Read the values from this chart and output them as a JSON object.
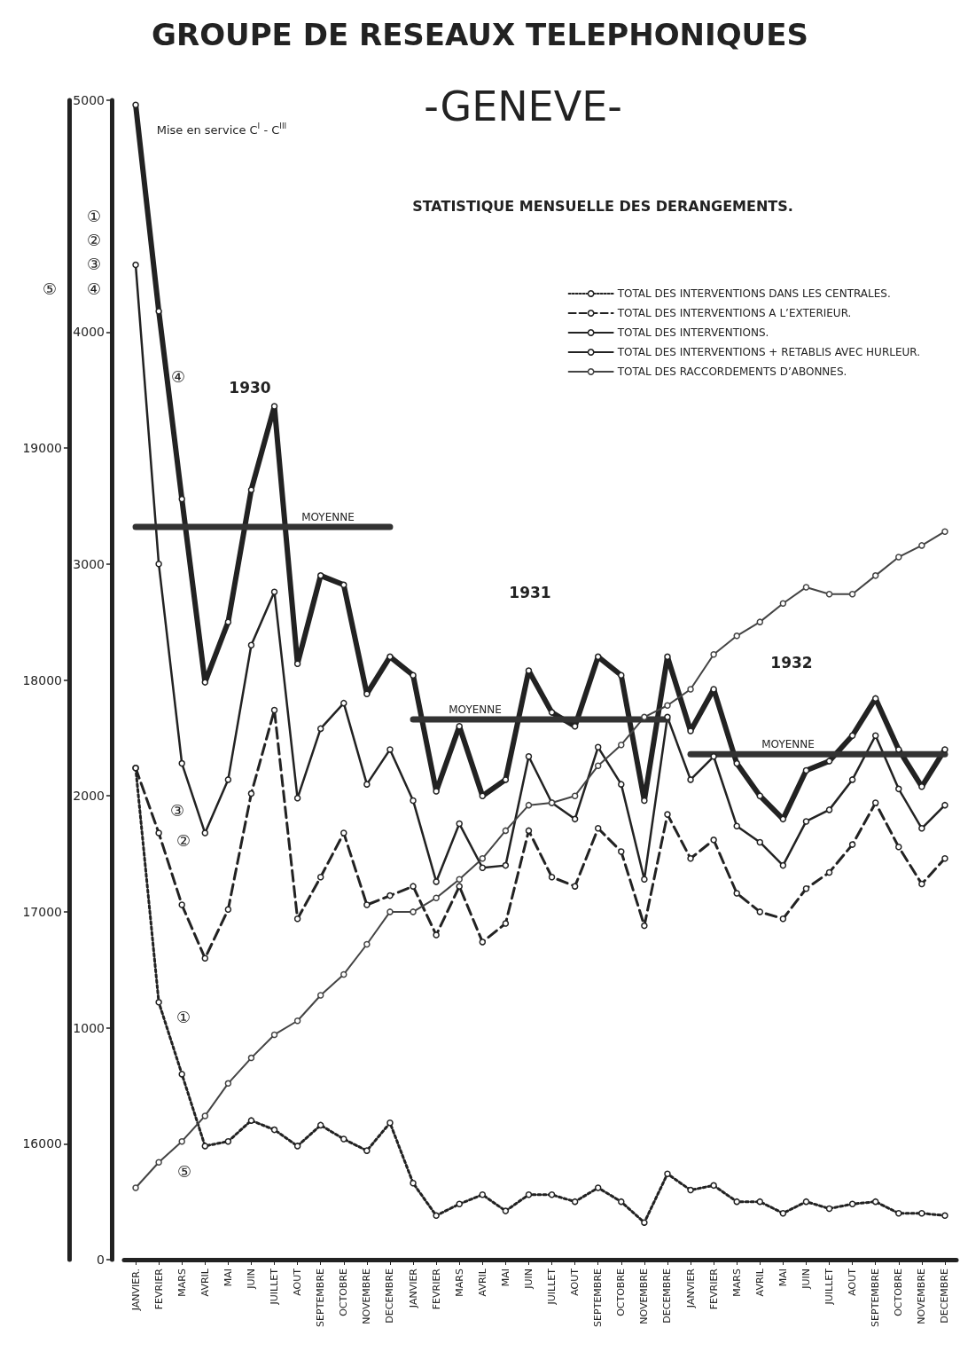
{
  "chart_data": {
    "type": "line",
    "title": "GROUPE DE RESEAUX TELEPHONIQUES",
    "subtitle": "-GENEVE-",
    "categories": [
      "JANVIER.",
      "FEVRIER",
      "MARS",
      "AVRIL",
      "MAI",
      "JUIN",
      "JUILLET",
      "AOUT",
      "SEPTEMBRE",
      "OCTOBRE",
      "NOVEMBRE",
      "DECEMBRE",
      "JANVIER",
      "FEVRIER",
      "MARS",
      "AVRIL",
      "MAI",
      "JUIN",
      "JUILLET",
      "AOUT",
      "SEPTEMBRE",
      "OCTOBRE",
      "NOVEMBRE",
      "DECEMBRE",
      "JANVIER",
      "FEVRIER",
      "MARS",
      "AVRIL",
      "MAI",
      "JUIN",
      "JUILLET",
      "AOUT",
      "SEPTEMBRE",
      "OCTOBRE",
      "NOVEMBRE",
      "DECEMBRE"
    ],
    "series": [
      {
        "name": "TOTAL DES INTERVENTIONS DANS LES CENTRALES.",
        "color": "#222222",
        "line_style": "dotted",
        "values": [
          2120,
          1110,
          800,
          490,
          510,
          600,
          560,
          490,
          580,
          520,
          470,
          590,
          330,
          190,
          240,
          280,
          210,
          280,
          280,
          250,
          310,
          250,
          160,
          370,
          300,
          320,
          250,
          250,
          200,
          250,
          220,
          240,
          250,
          200,
          200,
          190
        ]
      },
      {
        "name": "TOTAL DES INTERVENTIONS A L’EXTERIEUR.",
        "color": "#222222",
        "line_style": "dashed",
        "values": [
          2120,
          1840,
          1530,
          1300,
          1510,
          2010,
          2370,
          1470,
          1650,
          1840,
          1530,
          1570,
          1610,
          1400,
          1610,
          1370,
          1450,
          1850,
          1650,
          1610,
          1860,
          1760,
          1440,
          1920,
          1730,
          1810,
          1580,
          1500,
          1470,
          1600,
          1670,
          1790,
          1970,
          1780,
          1620,
          1730
        ]
      },
      {
        "name": "TOTAL DES INTERVENTIONS.",
        "color": "#222222",
        "line_style": "solid",
        "values": [
          4290,
          3000,
          2140,
          1840,
          2070,
          2650,
          2880,
          1990,
          2290,
          2400,
          2050,
          2200,
          1980,
          1630,
          1880,
          1690,
          1700,
          2170,
          1970,
          1900,
          2210,
          2050,
          1640,
          2340,
          2070,
          2170,
          1870,
          1800,
          1700,
          1890,
          1940,
          2070,
          2260,
          2030,
          1860,
          1960
        ]
      },
      {
        "name": "TOTAL DES INTERVENTIONS + RETABLIS AVEC HURLEUR.",
        "color": "#222222",
        "line_style": "solid",
        "values": [
          4980,
          4090,
          3280,
          2490,
          2750,
          3320,
          3680,
          2570,
          2950,
          2910,
          2440,
          2600,
          2520,
          2020,
          2300,
          2000,
          2070,
          2540,
          2360,
          2300,
          2600,
          2520,
          1980,
          2600,
          2280,
          2460,
          2140,
          2000,
          1900,
          2110,
          2150,
          2260,
          2420,
          2200,
          2040,
          2200
        ]
      },
      {
        "name": "TOTAL DES RACCORDEMENTS D’ABONNES.",
        "color": "#444444",
        "line_style": "solid",
        "axis": "y2",
        "values": [
          15810,
          15920,
          16010,
          16120,
          16260,
          16370,
          16470,
          16530,
          16640,
          16730,
          16860,
          17000,
          17000,
          17060,
          17140,
          17230,
          17350,
          17460,
          17470,
          17500,
          17630,
          17720,
          17840,
          17890,
          17960,
          18110,
          18190,
          18250,
          18330,
          18400,
          18370,
          18370,
          18450,
          18530,
          18580,
          18640
        ]
      },
      {
        "name": "MOYENNE",
        "color": "#333333",
        "line_style": "solid",
        "marker": "none",
        "values": [
          3160,
          3160,
          3160,
          3160,
          3160,
          3160,
          3160,
          3160,
          3160,
          3160,
          3160,
          3160,
          null,
          null,
          null,
          null,
          null,
          null,
          null,
          null,
          null,
          null,
          null,
          null,
          null,
          null,
          null,
          null,
          null,
          null,
          null,
          null,
          null,
          null,
          null,
          null
        ]
      },
      {
        "name": "MOYENNE",
        "color": "#333333",
        "line_style": "solid",
        "marker": "none",
        "values": [
          null,
          null,
          null,
          null,
          null,
          null,
          null,
          null,
          null,
          null,
          null,
          null,
          2330,
          2330,
          2330,
          2330,
          2330,
          2330,
          2330,
          2330,
          2330,
          2330,
          2330,
          2330,
          null,
          null,
          null,
          null,
          null,
          null,
          null,
          null,
          null,
          null,
          null,
          null
        ]
      },
      {
        "name": "MOYENNE",
        "color": "#333333",
        "line_style": "solid",
        "marker": "none",
        "values": [
          null,
          null,
          null,
          null,
          null,
          null,
          null,
          null,
          null,
          null,
          null,
          null,
          null,
          null,
          null,
          null,
          null,
          null,
          null,
          null,
          null,
          null,
          null,
          null,
          2180,
          2180,
          2180,
          2180,
          2180,
          2180,
          2180,
          2180,
          2180,
          2180,
          2180,
          2180
        ]
      }
    ],
    "ylim": [
      0,
      5000
    ],
    "yticks": [
      0,
      1000,
      2000,
      3000,
      4000,
      5000
    ],
    "y2lim": [
      15500,
      20500
    ],
    "y2ticks": [
      16000,
      17000,
      18000,
      19000
    ],
    "marker": "circle",
    "grid": false,
    "legend": "top right",
    "annotations": [
      "STATISTIQUE MENSUELLE DES DERANGEMENTS.",
      "Mise en service C$^{I}$ - C$^{III}$",
      "1930",
      "1931",
      "1932",
      "①",
      "②",
      "③",
      "④",
      "⑤",
      "④",
      "③",
      "②",
      "①",
      "⑤"
    ]
  }
}
